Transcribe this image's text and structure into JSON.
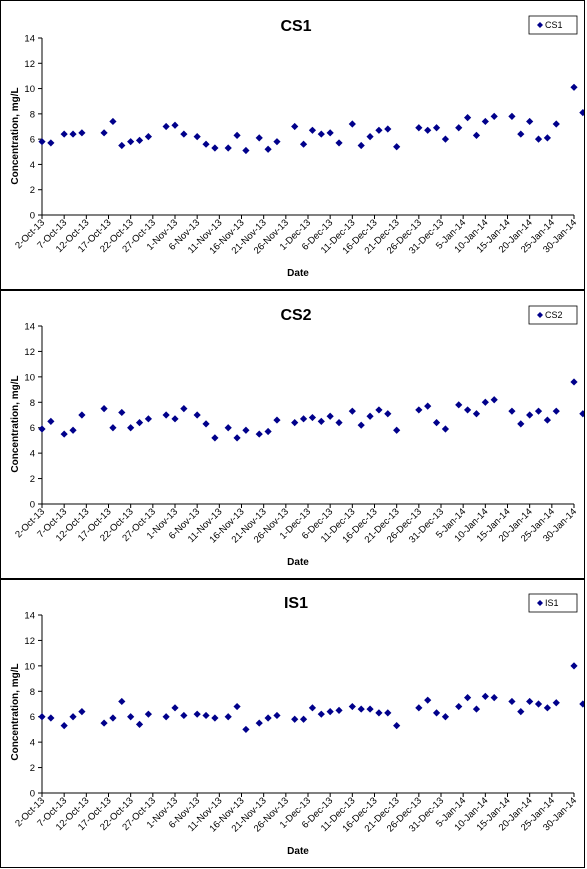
{
  "chart_data": [
    {
      "type": "scatter",
      "title": "CS1",
      "xlabel": "Date",
      "ylabel": "Concentration, mg/L",
      "ylim": [
        0,
        14
      ],
      "yticks": [
        "0",
        "2",
        "4",
        "6",
        "8",
        "10",
        "12",
        "14"
      ],
      "xlim": [
        "2-Oct-13",
        "30-Jan-14"
      ],
      "xticks": [
        "2-Oct-13",
        "7-Oct-13",
        "12-Oct-13",
        "17-Oct-13",
        "22-Oct-13",
        "27-Oct-13",
        "1-Nov-13",
        "6-Nov-13",
        "11-Nov-13",
        "16-Nov-13",
        "21-Nov-13",
        "26-Nov-13",
        "1-Dec-13",
        "6-Dec-13",
        "11-Dec-13",
        "16-Dec-13",
        "21-Dec-13",
        "26-Dec-13",
        "31-Dec-13",
        "5-Jan-14",
        "10-Jan-14",
        "15-Jan-14",
        "20-Jan-14",
        "25-Jan-14",
        "30-Jan-14"
      ],
      "legend_position": "top-right",
      "grid": false,
      "series": [
        {
          "name": "CS1",
          "color": "#00008b",
          "marker": "diamond",
          "points": [
            [
              "2-Oct-13",
              5.8
            ],
            [
              "4-Oct-13",
              5.7
            ],
            [
              "7-Oct-13",
              6.4
            ],
            [
              "9-Oct-13",
              6.4
            ],
            [
              "11-Oct-13",
              6.5
            ],
            [
              "16-Oct-13",
              6.5
            ],
            [
              "18-Oct-13",
              7.4
            ],
            [
              "20-Oct-13",
              5.5
            ],
            [
              "22-Oct-13",
              5.8
            ],
            [
              "24-Oct-13",
              5.9
            ],
            [
              "26-Oct-13",
              6.2
            ],
            [
              "30-Oct-13",
              7.0
            ],
            [
              "1-Nov-13",
              7.1
            ],
            [
              "3-Nov-13",
              6.4
            ],
            [
              "6-Nov-13",
              6.2
            ],
            [
              "8-Nov-13",
              5.6
            ],
            [
              "10-Nov-13",
              5.3
            ],
            [
              "13-Nov-13",
              5.3
            ],
            [
              "15-Nov-13",
              6.3
            ],
            [
              "17-Nov-13",
              5.1
            ],
            [
              "20-Nov-13",
              6.1
            ],
            [
              "22-Nov-13",
              5.2
            ],
            [
              "24-Nov-13",
              5.8
            ],
            [
              "28-Nov-13",
              7.0
            ],
            [
              "30-Nov-13",
              5.6
            ],
            [
              "2-Dec-13",
              6.7
            ],
            [
              "4-Dec-13",
              6.4
            ],
            [
              "6-Dec-13",
              6.5
            ],
            [
              "8-Dec-13",
              5.7
            ],
            [
              "11-Dec-13",
              7.2
            ],
            [
              "13-Dec-13",
              5.5
            ],
            [
              "15-Dec-13",
              6.2
            ],
            [
              "17-Dec-13",
              6.7
            ],
            [
              "19-Dec-13",
              6.8
            ],
            [
              "21-Dec-13",
              5.4
            ],
            [
              "26-Dec-13",
              6.9
            ],
            [
              "28-Dec-13",
              6.7
            ],
            [
              "30-Dec-13",
              6.9
            ],
            [
              "1-Jan-14",
              6.0
            ],
            [
              "4-Jan-14",
              6.9
            ],
            [
              "6-Jan-14",
              7.7
            ],
            [
              "8-Jan-14",
              6.3
            ],
            [
              "10-Jan-14",
              7.4
            ],
            [
              "12-Jan-14",
              7.8
            ],
            [
              "16-Jan-14",
              7.8
            ],
            [
              "18-Jan-14",
              6.4
            ],
            [
              "20-Jan-14",
              7.4
            ],
            [
              "22-Jan-14",
              6.0
            ],
            [
              "24-Jan-14",
              6.1
            ],
            [
              "26-Jan-14",
              7.2
            ],
            [
              "30-Jan-14",
              10.1
            ],
            [
              "1-Feb-14",
              8.1
            ]
          ]
        }
      ]
    },
    {
      "type": "scatter",
      "title": "CS2",
      "xlabel": "Date",
      "ylabel": "Concentration, mg/L",
      "ylim": [
        0,
        14
      ],
      "yticks": [
        "0",
        "2",
        "4",
        "6",
        "8",
        "10",
        "12",
        "14"
      ],
      "xlim": [
        "2-Oct-13",
        "30-Jan-14"
      ],
      "xticks": [
        "2-Oct-13",
        "7-Oct-13",
        "12-Oct-13",
        "17-Oct-13",
        "22-Oct-13",
        "27-Oct-13",
        "1-Nov-13",
        "6-Nov-13",
        "11-Nov-13",
        "16-Nov-13",
        "21-Nov-13",
        "26-Nov-13",
        "1-Dec-13",
        "6-Dec-13",
        "11-Dec-13",
        "16-Dec-13",
        "21-Dec-13",
        "26-Dec-13",
        "31-Dec-13",
        "5-Jan-14",
        "10-Jan-14",
        "15-Jan-14",
        "20-Jan-14",
        "25-Jan-14",
        "30-Jan-14"
      ],
      "legend_position": "top-right",
      "grid": false,
      "series": [
        {
          "name": "CS2",
          "color": "#00008b",
          "marker": "diamond",
          "points": [
            [
              "2-Oct-13",
              5.9
            ],
            [
              "4-Oct-13",
              6.5
            ],
            [
              "7-Oct-13",
              5.5
            ],
            [
              "9-Oct-13",
              5.8
            ],
            [
              "11-Oct-13",
              7.0
            ],
            [
              "16-Oct-13",
              7.5
            ],
            [
              "18-Oct-13",
              6.0
            ],
            [
              "20-Oct-13",
              7.2
            ],
            [
              "22-Oct-13",
              6.0
            ],
            [
              "24-Oct-13",
              6.4
            ],
            [
              "26-Oct-13",
              6.7
            ],
            [
              "30-Oct-13",
              7.0
            ],
            [
              "1-Nov-13",
              6.7
            ],
            [
              "3-Nov-13",
              7.5
            ],
            [
              "6-Nov-13",
              7.0
            ],
            [
              "8-Nov-13",
              6.3
            ],
            [
              "10-Nov-13",
              5.2
            ],
            [
              "13-Nov-13",
              6.0
            ],
            [
              "15-Nov-13",
              5.2
            ],
            [
              "17-Nov-13",
              5.8
            ],
            [
              "20-Nov-13",
              5.5
            ],
            [
              "22-Nov-13",
              5.7
            ],
            [
              "24-Nov-13",
              6.6
            ],
            [
              "28-Nov-13",
              6.4
            ],
            [
              "30-Nov-13",
              6.7
            ],
            [
              "2-Dec-13",
              6.8
            ],
            [
              "4-Dec-13",
              6.5
            ],
            [
              "6-Dec-13",
              6.9
            ],
            [
              "8-Dec-13",
              6.4
            ],
            [
              "11-Dec-13",
              7.3
            ],
            [
              "13-Dec-13",
              6.2
            ],
            [
              "15-Dec-13",
              6.9
            ],
            [
              "17-Dec-13",
              7.4
            ],
            [
              "19-Dec-13",
              7.1
            ],
            [
              "21-Dec-13",
              5.8
            ],
            [
              "26-Dec-13",
              7.4
            ],
            [
              "28-Dec-13",
              7.7
            ],
            [
              "30-Dec-13",
              6.4
            ],
            [
              "1-Jan-14",
              5.9
            ],
            [
              "4-Jan-14",
              7.8
            ],
            [
              "6-Jan-14",
              7.4
            ],
            [
              "8-Jan-14",
              7.1
            ],
            [
              "10-Jan-14",
              8.0
            ],
            [
              "12-Jan-14",
              8.2
            ],
            [
              "16-Jan-14",
              7.3
            ],
            [
              "18-Jan-14",
              6.3
            ],
            [
              "20-Jan-14",
              7.0
            ],
            [
              "22-Jan-14",
              7.3
            ],
            [
              "24-Jan-14",
              6.6
            ],
            [
              "26-Jan-14",
              7.3
            ],
            [
              "30-Jan-14",
              9.6
            ],
            [
              "1-Feb-14",
              7.1
            ]
          ]
        }
      ]
    },
    {
      "type": "scatter",
      "title": "IS1",
      "xlabel": "Date",
      "ylabel": "Concentration, mg/L",
      "ylim": [
        0,
        14
      ],
      "yticks": [
        "0",
        "2",
        "4",
        "6",
        "8",
        "10",
        "12",
        "14"
      ],
      "xlim": [
        "2-Oct-13",
        "30-Jan-14"
      ],
      "xticks": [
        "2-Oct-13",
        "7-Oct-13",
        "12-Oct-13",
        "17-Oct-13",
        "22-Oct-13",
        "27-Oct-13",
        "1-Nov-13",
        "6-Nov-13",
        "11-Nov-13",
        "16-Nov-13",
        "21-Nov-13",
        "26-Nov-13",
        "1-Dec-13",
        "6-Dec-13",
        "11-Dec-13",
        "16-Dec-13",
        "21-Dec-13",
        "26-Dec-13",
        "31-Dec-13",
        "5-Jan-14",
        "10-Jan-14",
        "15-Jan-14",
        "20-Jan-14",
        "25-Jan-14",
        "30-Jan-14"
      ],
      "legend_position": "top-right",
      "grid": false,
      "series": [
        {
          "name": "IS1",
          "color": "#00008b",
          "marker": "diamond",
          "points": [
            [
              "2-Oct-13",
              6.0
            ],
            [
              "4-Oct-13",
              5.9
            ],
            [
              "7-Oct-13",
              5.3
            ],
            [
              "9-Oct-13",
              6.0
            ],
            [
              "11-Oct-13",
              6.4
            ],
            [
              "16-Oct-13",
              5.5
            ],
            [
              "18-Oct-13",
              5.9
            ],
            [
              "20-Oct-13",
              7.2
            ],
            [
              "22-Oct-13",
              6.0
            ],
            [
              "24-Oct-13",
              5.4
            ],
            [
              "26-Oct-13",
              6.2
            ],
            [
              "30-Oct-13",
              6.0
            ],
            [
              "1-Nov-13",
              6.7
            ],
            [
              "3-Nov-13",
              6.1
            ],
            [
              "6-Nov-13",
              6.2
            ],
            [
              "8-Nov-13",
              6.1
            ],
            [
              "10-Nov-13",
              5.9
            ],
            [
              "13-Nov-13",
              6.0
            ],
            [
              "15-Nov-13",
              6.8
            ],
            [
              "17-Nov-13",
              5.0
            ],
            [
              "20-Nov-13",
              5.5
            ],
            [
              "22-Nov-13",
              5.9
            ],
            [
              "24-Nov-13",
              6.1
            ],
            [
              "28-Nov-13",
              5.8
            ],
            [
              "30-Nov-13",
              5.8
            ],
            [
              "2-Dec-13",
              6.7
            ],
            [
              "4-Dec-13",
              6.2
            ],
            [
              "6-Dec-13",
              6.4
            ],
            [
              "8-Dec-13",
              6.5
            ],
            [
              "11-Dec-13",
              6.8
            ],
            [
              "13-Dec-13",
              6.6
            ],
            [
              "15-Dec-13",
              6.6
            ],
            [
              "17-Dec-13",
              6.3
            ],
            [
              "19-Dec-13",
              6.3
            ],
            [
              "21-Dec-13",
              5.3
            ],
            [
              "26-Dec-13",
              6.7
            ],
            [
              "28-Dec-13",
              7.3
            ],
            [
              "30-Dec-13",
              6.3
            ],
            [
              "1-Jan-14",
              6.0
            ],
            [
              "4-Jan-14",
              6.8
            ],
            [
              "6-Jan-14",
              7.5
            ],
            [
              "8-Jan-14",
              6.6
            ],
            [
              "10-Jan-14",
              7.6
            ],
            [
              "12-Jan-14",
              7.5
            ],
            [
              "16-Jan-14",
              7.2
            ],
            [
              "18-Jan-14",
              6.4
            ],
            [
              "20-Jan-14",
              7.2
            ],
            [
              "22-Jan-14",
              7.0
            ],
            [
              "24-Jan-14",
              6.7
            ],
            [
              "26-Jan-14",
              7.1
            ],
            [
              "30-Jan-14",
              10.0
            ],
            [
              "1-Feb-14",
              7.0
            ]
          ]
        }
      ]
    }
  ]
}
